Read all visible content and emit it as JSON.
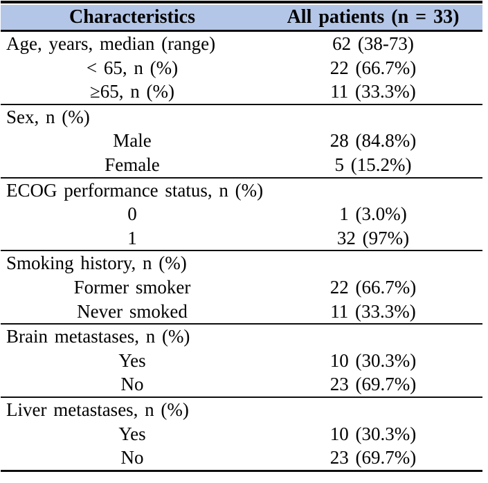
{
  "colors": {
    "header_bg": "#b4c6e7",
    "rule": "#0d0d0d",
    "text": "#000000",
    "page_bg": "#ffffff"
  },
  "table": {
    "header": {
      "characteristics": "Characteristics",
      "all_patients": "All patients (n = 33)"
    },
    "rows": [
      {
        "label": "Age, years, median (range)",
        "value": "62 (38-73)",
        "align": "left",
        "divider": false
      },
      {
        "label": "< 65, n (%)",
        "value": "22 (66.7%)",
        "align": "center",
        "divider": false
      },
      {
        "label": "≥65, n (%)",
        "value": "11 (33.3%)",
        "align": "center",
        "divider": true
      },
      {
        "label": "Sex, n (%)",
        "value": "",
        "align": "left",
        "divider": false
      },
      {
        "label": "Male",
        "value": "28 (84.8%)",
        "align": "center",
        "divider": false
      },
      {
        "label": "Female",
        "value": "5 (15.2%)",
        "align": "center",
        "divider": true
      },
      {
        "label": "ECOG performance status, n (%)",
        "value": "",
        "align": "left",
        "divider": false
      },
      {
        "label": "0",
        "value": "1 (3.0%)",
        "align": "center",
        "divider": false
      },
      {
        "label": "1",
        "value": "32 (97%)",
        "align": "center",
        "divider": true
      },
      {
        "label": "Smoking history, n (%)",
        "value": "",
        "align": "left",
        "divider": false
      },
      {
        "label": "Former smoker",
        "value": "22 (66.7%)",
        "align": "center",
        "divider": false
      },
      {
        "label": "Never smoked",
        "value": "11 (33.3%)",
        "align": "center",
        "divider": true
      },
      {
        "label": "Brain metastases, n (%)",
        "value": "",
        "align": "left",
        "divider": false
      },
      {
        "label": "Yes",
        "value": "10 (30.3%)",
        "align": "center",
        "divider": false
      },
      {
        "label": "No",
        "value": "23 (69.7%)",
        "align": "center",
        "divider": true
      },
      {
        "label": "Liver metastases, n (%)",
        "value": "",
        "align": "left",
        "divider": false
      },
      {
        "label": "Yes",
        "value": "10 (30.3%)",
        "align": "center",
        "divider": false
      },
      {
        "label": "No",
        "value": "23 (69.7%)",
        "align": "center",
        "divider": false
      }
    ]
  }
}
